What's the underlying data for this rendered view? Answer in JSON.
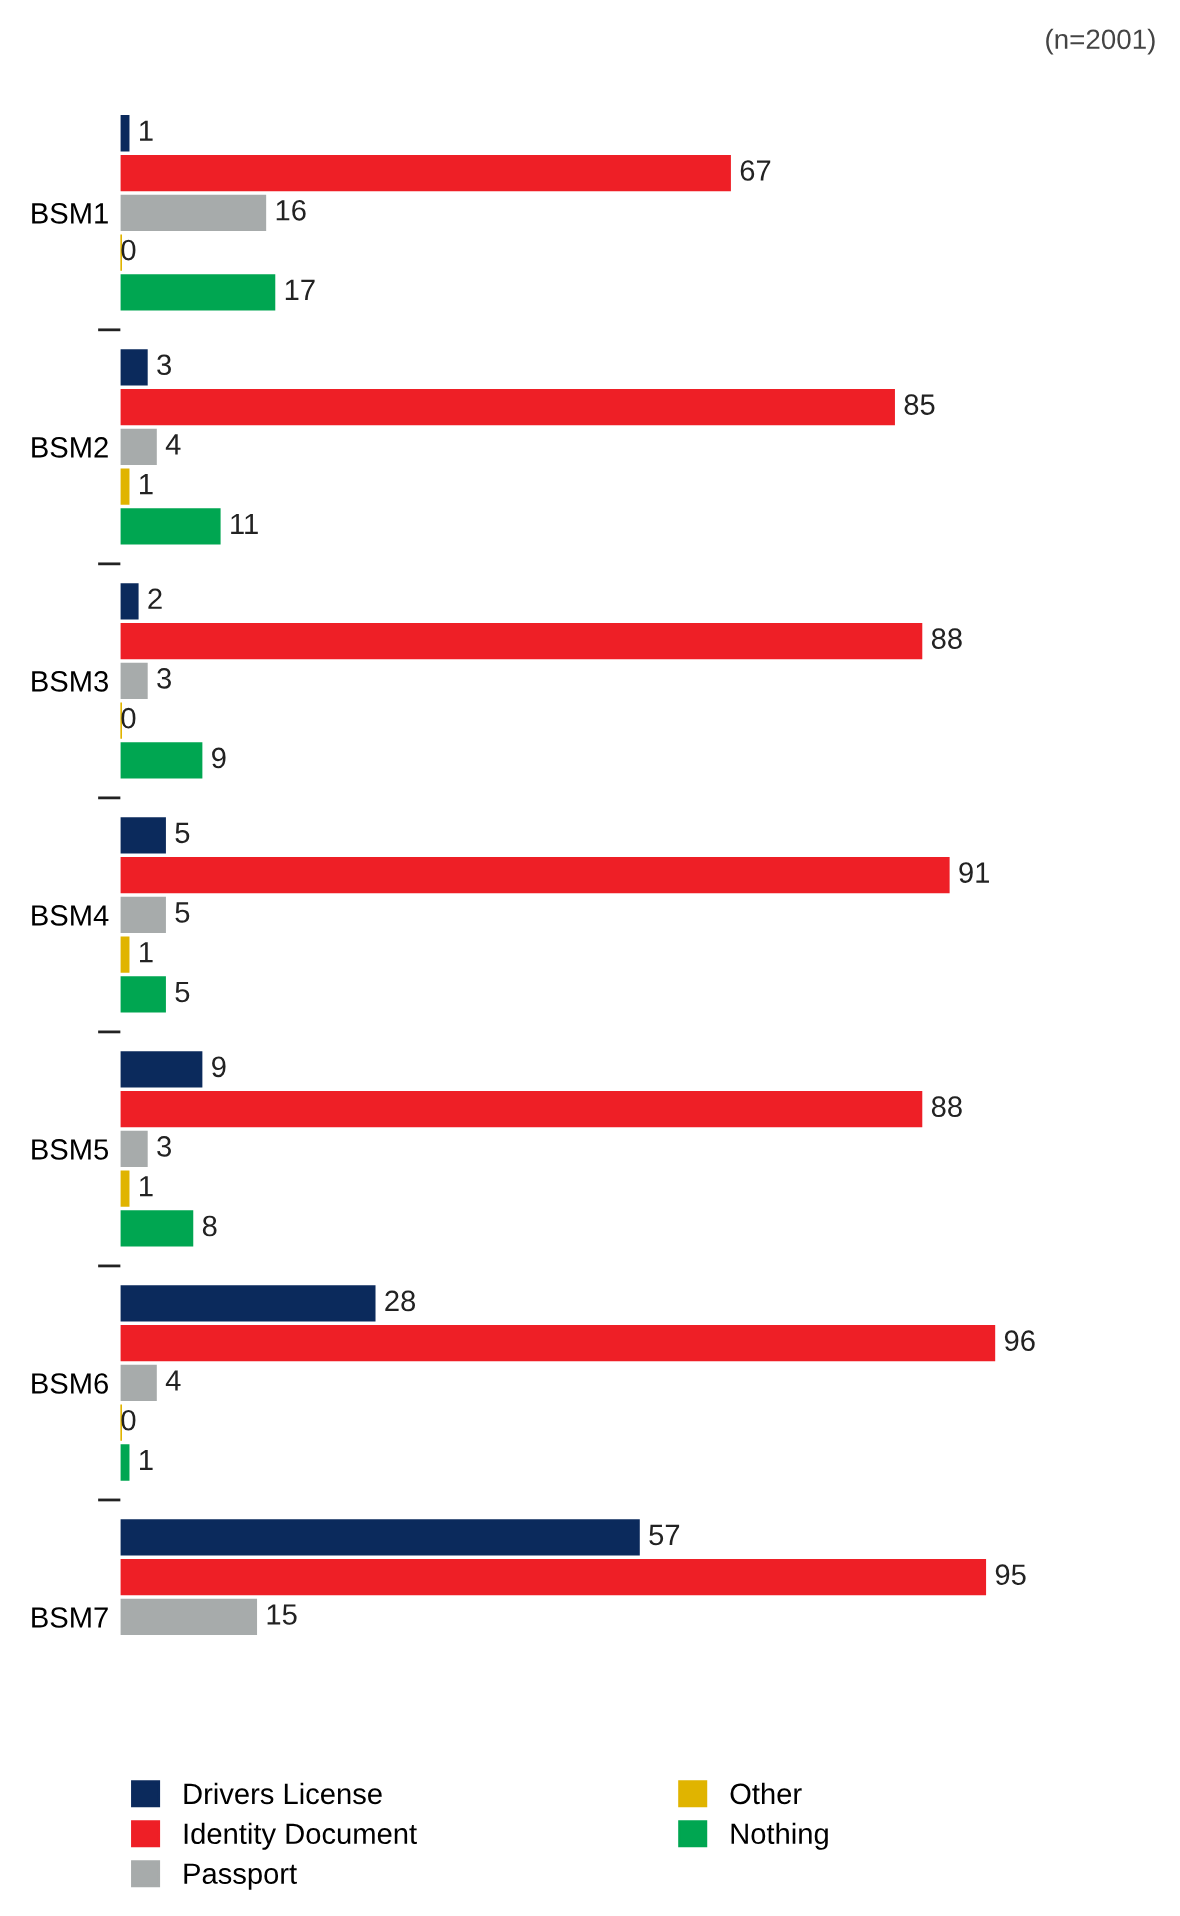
{
  "chart_data": {
    "type": "bar",
    "orientation": "horizontal",
    "categories": [
      "BSM1",
      "BSM2",
      "BSM3",
      "BSM4",
      "BSM5",
      "BSM6",
      "BSM7"
    ],
    "series": [
      {
        "name": "Drivers License",
        "color": "#0b2a5c",
        "values": [
          1,
          3,
          2,
          5,
          9,
          28,
          57
        ]
      },
      {
        "name": "Identity Document",
        "color": "#ee1f26",
        "values": [
          67,
          85,
          88,
          91,
          88,
          96,
          95
        ]
      },
      {
        "name": "Passport",
        "color": "#a7abab",
        "values": [
          16,
          4,
          3,
          5,
          3,
          4,
          15
        ]
      },
      {
        "name": "Other",
        "color": "#e0b400",
        "values": [
          0,
          1,
          0,
          1,
          1,
          0,
          null
        ]
      },
      {
        "name": "Nothing",
        "color": "#00a651",
        "values": [
          17,
          11,
          9,
          5,
          8,
          1,
          null
        ]
      }
    ],
    "data_labels": true,
    "legend": "bottom",
    "grid": false,
    "tick_labels": "y",
    "annotations": [
      "(n=2001)"
    ]
  }
}
